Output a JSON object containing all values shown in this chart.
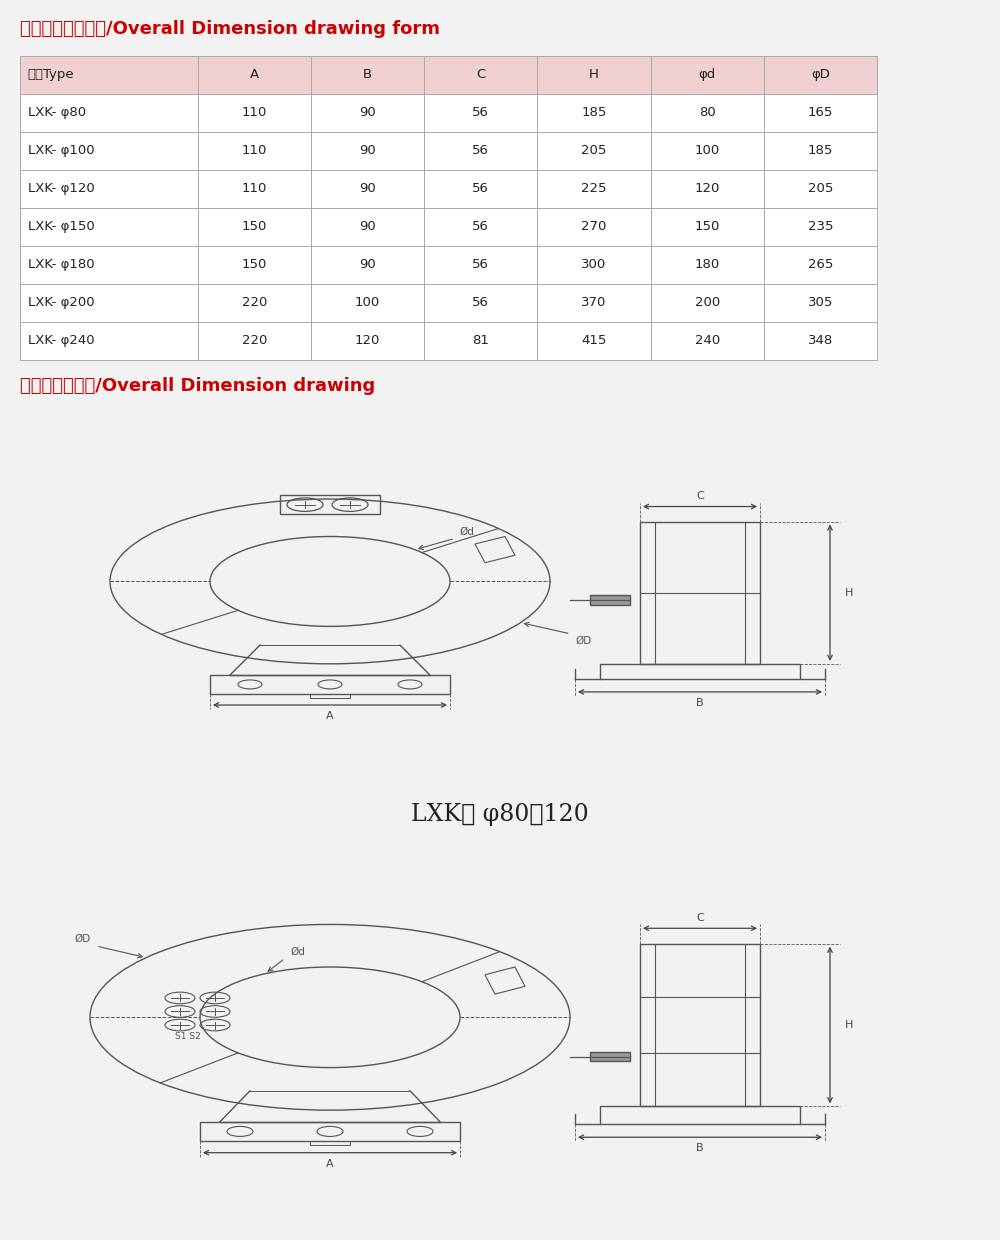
{
  "title1": "外形及安装尺寸表/Overall Dimension drawing form",
  "title2": "外形及安装尺寸/Overall Dimension drawing",
  "title_color": "#cc0000",
  "bg_color": "#f2f2f2",
  "table_header_bg": "#f0d0d0",
  "table_data_bg": "#ffffff",
  "table_border_color": "#aaaaaa",
  "table_headers": [
    "型号Type",
    "A",
    "B",
    "C",
    "H",
    "φd",
    "φD"
  ],
  "table_rows": [
    [
      "LXK- φ80",
      "110",
      "90",
      "56",
      "185",
      "80",
      "165"
    ],
    [
      "LXK- φ100",
      "110",
      "90",
      "56",
      "205",
      "100",
      "185"
    ],
    [
      "LXK- φ120",
      "110",
      "90",
      "56",
      "225",
      "120",
      "205"
    ],
    [
      "LXK- φ150",
      "150",
      "90",
      "56",
      "270",
      "150",
      "235"
    ],
    [
      "LXK- φ180",
      "150",
      "90",
      "56",
      "300",
      "180",
      "265"
    ],
    [
      "LXK- φ200",
      "220",
      "100",
      "56",
      "370",
      "200",
      "305"
    ],
    [
      "LXK- φ240",
      "220",
      "120",
      "81",
      "415",
      "240",
      "348"
    ]
  ],
  "label_mid": "LXK－ φ80－120",
  "lc": "#555555",
  "drawing_bg": "#e6e6e6",
  "white_bg": "#ffffff"
}
